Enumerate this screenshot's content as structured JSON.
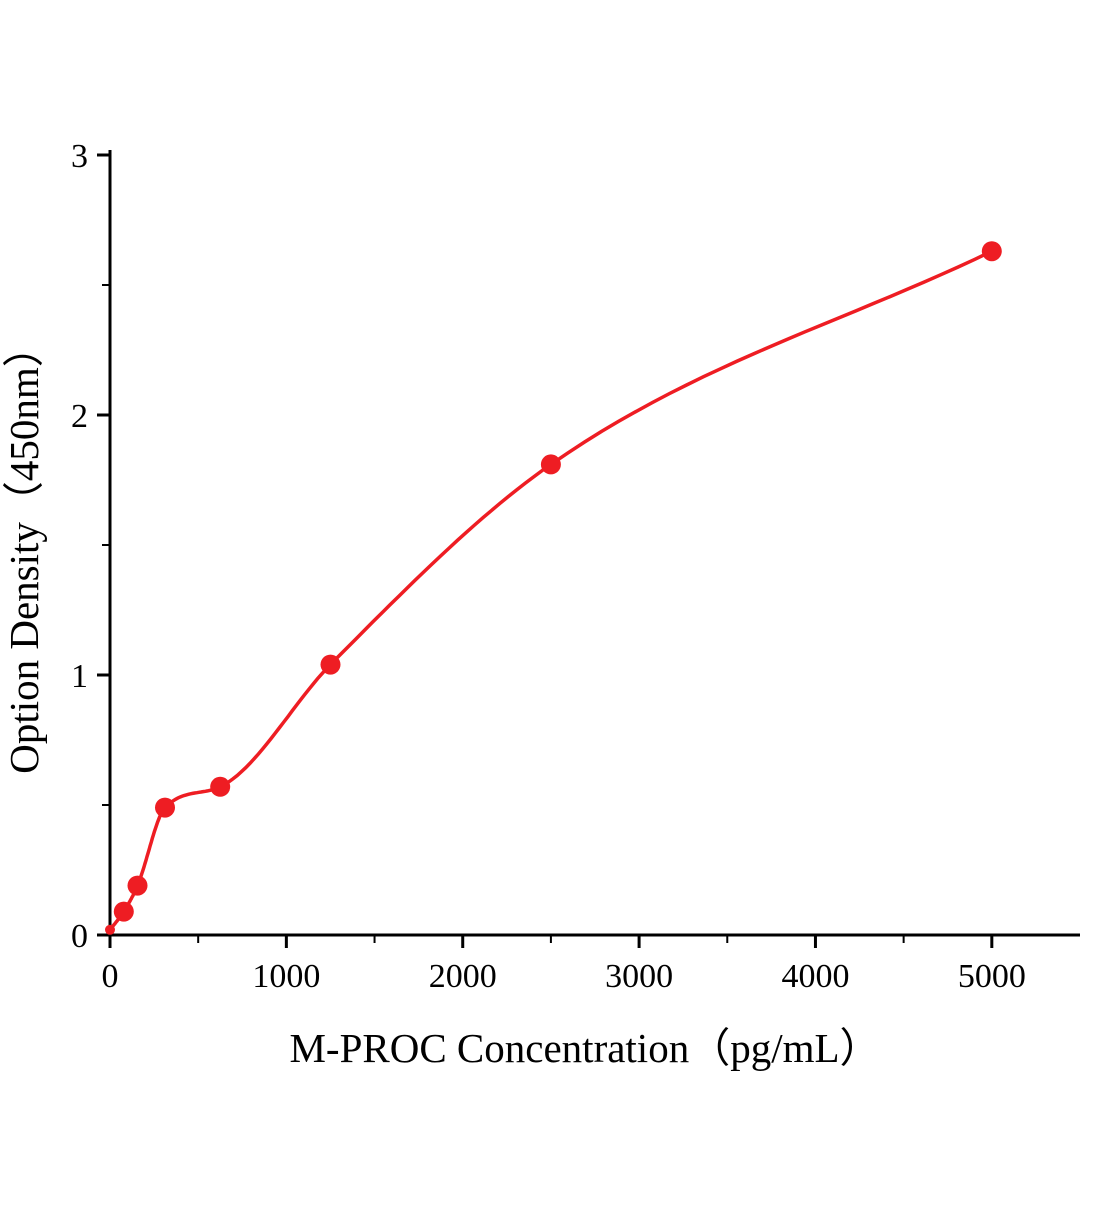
{
  "chart_data": {
    "type": "scatter",
    "title": "",
    "xlabel": "M-PROC Concentration（pg/mL）",
    "ylabel": "Option Density（450nm）",
    "x": [
      0,
      78,
      156,
      312,
      625,
      1250,
      2500,
      5000
    ],
    "y": [
      0.02,
      0.09,
      0.19,
      0.49,
      0.57,
      1.04,
      1.81,
      2.63
    ],
    "xlim": [
      0,
      5500
    ],
    "ylim": [
      0,
      3
    ],
    "xticks": [
      0,
      1000,
      2000,
      3000,
      4000,
      5000
    ],
    "yticks": [
      0,
      1,
      2,
      3
    ],
    "x_minor_ticks": [
      500,
      1500,
      2500,
      3500,
      4500
    ],
    "y_minor_ticks": [
      0.5,
      1.5,
      2.5
    ],
    "grid": false,
    "legend": "none",
    "has_fit_curve": true,
    "marker_color": "#ee1d23",
    "curve_color": "#ee1d23",
    "axis_color": "#000000"
  }
}
